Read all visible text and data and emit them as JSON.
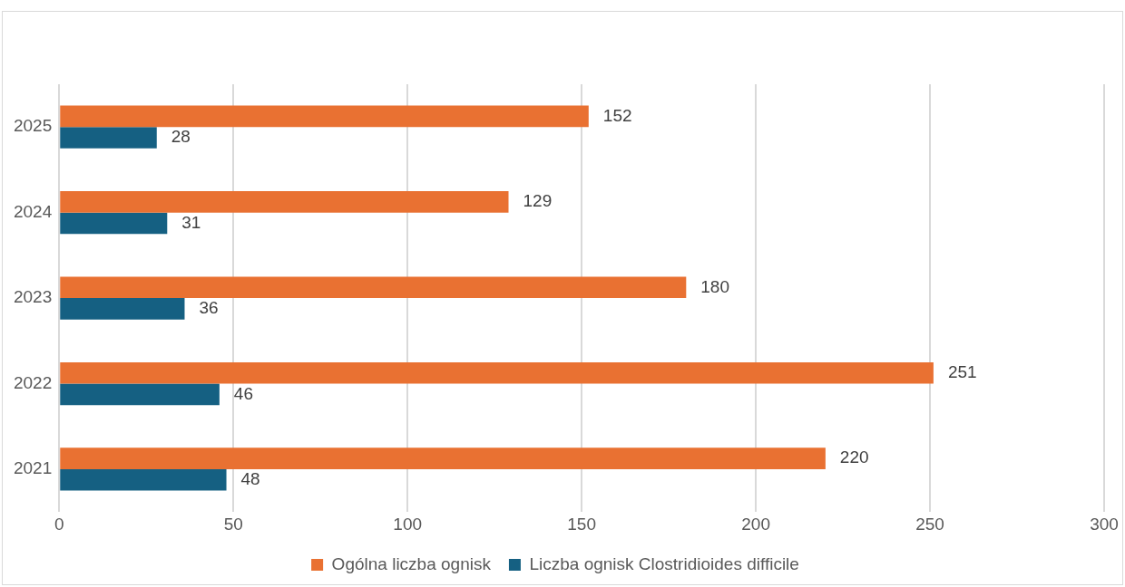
{
  "chart_data": {
    "type": "bar",
    "orientation": "horizontal",
    "categories": [
      "2025",
      "2024",
      "2023",
      "2022",
      "2021"
    ],
    "series": [
      {
        "name": "Ogólna liczba ognisk",
        "color": "#e97132",
        "values": [
          152,
          129,
          180,
          251,
          220
        ]
      },
      {
        "name": "Liczba ognisk Clostridioides difficile",
        "color": "#156082",
        "values": [
          28,
          31,
          36,
          46,
          48
        ]
      }
    ],
    "xlim": [
      0,
      300
    ],
    "xticks": [
      0,
      50,
      100,
      150,
      200,
      250,
      300
    ],
    "grid": "x",
    "legend": "bottom",
    "data_labels": true
  }
}
